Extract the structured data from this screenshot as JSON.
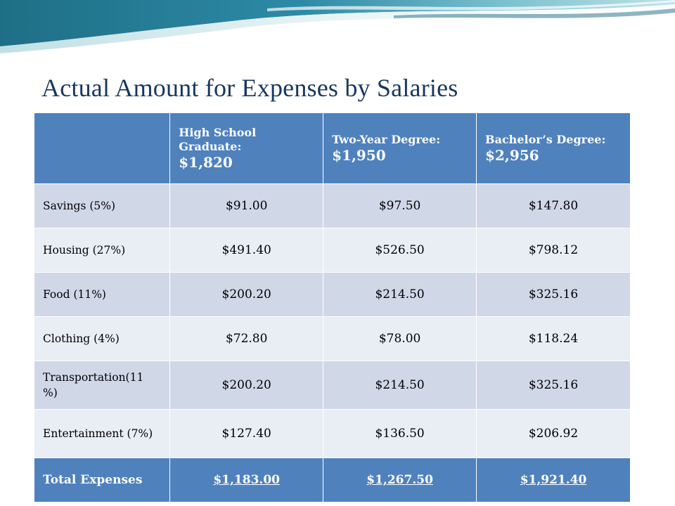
{
  "title": "Actual Amount for Expenses by Salaries",
  "colors": {
    "header": "#4f81bd",
    "row_odd": "#d0d8e8",
    "row_even": "#e9edf4",
    "title": "#17375e"
  },
  "header": [
    {
      "label": "",
      "amount": ""
    },
    {
      "label": "High School Graduate:",
      "amount": "$1,820"
    },
    {
      "label": "Two-Year Degree:",
      "amount": "$1,950"
    },
    {
      "label": "Bachelor’s Degree:",
      "amount": "$2,956"
    }
  ],
  "rows": [
    {
      "label": "Savings (5%)",
      "values": [
        "$91.00",
        "$97.50",
        "$147.80"
      ]
    },
    {
      "label": "Housing (27%)",
      "values": [
        "$491.40",
        "$526.50",
        "$798.12"
      ]
    },
    {
      "label": "Food (11%)",
      "values": [
        "$200.20",
        "$214.50",
        "$325.16"
      ]
    },
    {
      "label": "Clothing (4%)",
      "values": [
        "$72.80",
        "$78.00",
        "$118.24"
      ]
    },
    {
      "label": "Transportation(11 %)",
      "values": [
        "$200.20",
        "$214.50",
        "$325.16"
      ]
    },
    {
      "label": "Entertainment (7%)",
      "values": [
        "$127.40",
        "$136.50",
        "$206.92"
      ]
    }
  ],
  "total": {
    "label": "Total Expenses",
    "values": [
      "$1,183.00",
      "$1,267.50",
      "$1,921.40"
    ]
  }
}
